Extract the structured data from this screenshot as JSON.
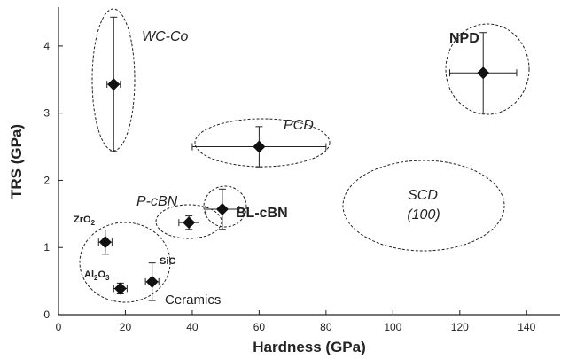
{
  "chart_data": {
    "type": "scatter",
    "xlabel": "Hardness (GPa)",
    "ylabel": "TRS (GPa)",
    "xlim": [
      0,
      150
    ],
    "ylim": [
      0,
      4.5
    ],
    "xticks": [
      "0",
      "20",
      "40",
      "60",
      "80",
      "100",
      "120",
      "140"
    ],
    "yticks": [
      "0",
      "1",
      "2",
      "3",
      "4"
    ],
    "grid": false,
    "points": [
      {
        "id": "wcco",
        "x": 16.5,
        "y": 3.43,
        "xerr": 2,
        "yerr_lo": 1.0,
        "yerr_hi": 1.0
      },
      {
        "id": "npd",
        "x": 127,
        "y": 3.6,
        "xerr": 10,
        "yerr_lo": 0.6,
        "yerr_hi": 0.6
      },
      {
        "id": "pcd",
        "x": 60,
        "y": 2.5,
        "xerr": 20,
        "yerr_lo": 0.3,
        "yerr_hi": 0.3
      },
      {
        "id": "blcbn",
        "x": 49,
        "y": 1.57,
        "xerr": 5,
        "yerr_lo": 0.3,
        "yerr_hi": 0.3
      },
      {
        "id": "pcbn",
        "x": 39,
        "y": 1.37,
        "xerr": 3,
        "yerr_lo": 0.1,
        "yerr_hi": 0.1
      },
      {
        "id": "zro2",
        "x": 14,
        "y": 1.08,
        "xerr": 2,
        "yerr_lo": 0.18,
        "yerr_hi": 0.18
      },
      {
        "id": "sic",
        "x": 28,
        "y": 0.49,
        "xerr": 2,
        "yerr_lo": 0.28,
        "yerr_hi": 0.28
      },
      {
        "id": "al2o3",
        "x": 18.5,
        "y": 0.39,
        "xerr": 2,
        "yerr_lo": 0.08,
        "yerr_hi": 0.08
      }
    ],
    "groups": [
      {
        "id": "wcco",
        "label": "WC-Co",
        "style": "italic"
      },
      {
        "id": "npd",
        "label": "NPD",
        "style": "bold"
      },
      {
        "id": "pcd",
        "label": "PCD",
        "style": "italic"
      },
      {
        "id": "blcbn",
        "label": "BL-cBN",
        "style": "bold"
      },
      {
        "id": "pcbn",
        "label": "P-cBN",
        "style": "italic"
      },
      {
        "id": "scd",
        "label_line1": "SCD",
        "label_line2": "(100)",
        "style": "italic"
      },
      {
        "id": "ceramics",
        "label": "Ceramics",
        "style": "plain"
      }
    ],
    "point_labels": {
      "zro2_main": "ZrO",
      "zro2_sub": "2",
      "sic": "SiC",
      "al2o3_a": "Al",
      "al2o3_a_sub": "2",
      "al2o3_b": "O",
      "al2o3_b_sub": "3"
    }
  }
}
